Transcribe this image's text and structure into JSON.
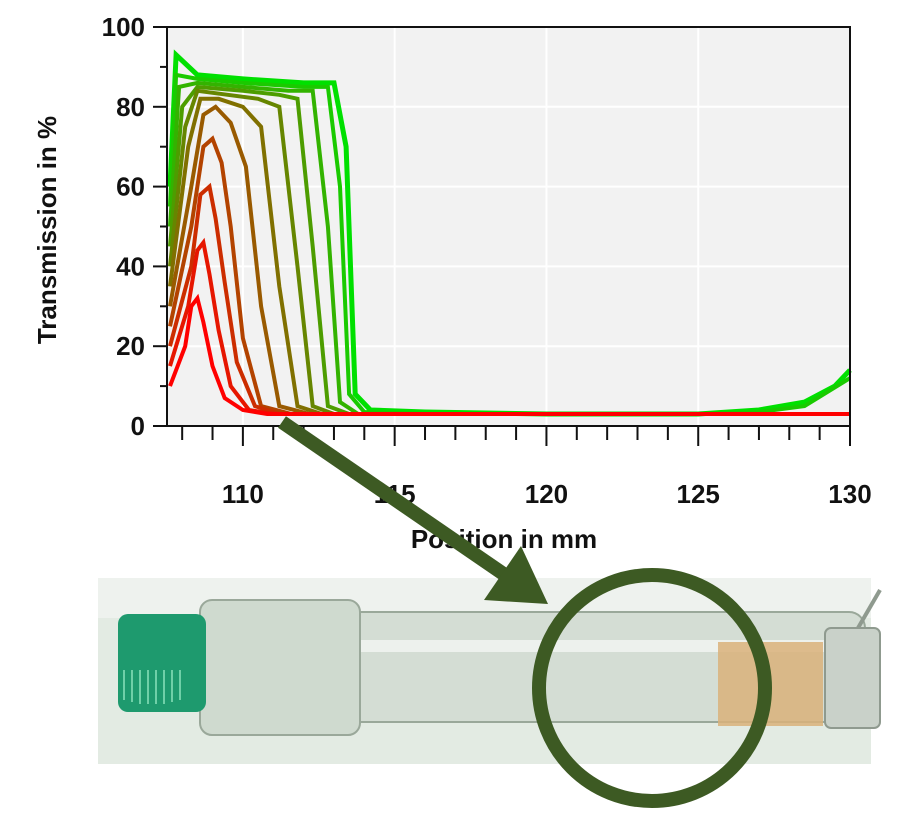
{
  "chart_data": {
    "type": "line",
    "xlabel": "Position in mm",
    "ylabel": "Transmission in %",
    "xlim": [
      107.5,
      130
    ],
    "ylim": [
      0,
      100
    ],
    "x_ticks": [
      110,
      115,
      120,
      125,
      130
    ],
    "y_ticks": [
      0,
      20,
      40,
      60,
      80,
      100
    ],
    "grid": true,
    "series_color_start": "#00e000",
    "series_color_end": "#ff0000",
    "series": [
      {
        "x": [
          107.6,
          107.8,
          108.5,
          110,
          112,
          113.0,
          113.4,
          113.7,
          114.2,
          116,
          120,
          125,
          127,
          128.5,
          129.5,
          130
        ],
        "values": [
          60,
          93,
          88,
          87,
          86,
          86,
          70,
          8,
          4,
          3.5,
          3,
          3,
          4,
          6,
          10,
          14
        ]
      },
      {
        "x": [
          107.6,
          107.8,
          108.5,
          110,
          112,
          112.8,
          113.2,
          113.5,
          114,
          116,
          120,
          125,
          127,
          128.5,
          130
        ],
        "values": [
          55,
          88,
          87,
          86,
          85,
          85,
          60,
          8,
          3.5,
          3,
          3,
          3,
          3.5,
          5,
          12
        ]
      },
      {
        "x": [
          107.6,
          107.9,
          108.5,
          110,
          111.5,
          112.3,
          112.8,
          113.2,
          113.8,
          116,
          120,
          125,
          130
        ],
        "values": [
          50,
          85,
          86,
          85,
          84,
          84,
          50,
          6,
          3,
          3,
          3,
          3,
          3
        ]
      },
      {
        "x": [
          107.6,
          108.0,
          108.5,
          110,
          111.2,
          111.8,
          112.3,
          112.8,
          113.5,
          116,
          120,
          125,
          130
        ],
        "values": [
          45,
          80,
          85,
          84,
          83,
          82,
          45,
          5,
          3,
          3,
          3,
          3,
          3
        ]
      },
      {
        "x": [
          107.6,
          108.1,
          108.5,
          109.5,
          110.5,
          111.2,
          111.8,
          112.3,
          113,
          116,
          120,
          125,
          130
        ],
        "values": [
          40,
          75,
          84,
          83,
          82,
          80,
          40,
          5,
          3,
          3,
          3,
          3,
          3
        ]
      },
      {
        "x": [
          107.6,
          108.2,
          108.6,
          109.2,
          110,
          110.6,
          111.2,
          111.8,
          112.6,
          116,
          120,
          125,
          130
        ],
        "values": [
          35,
          70,
          82,
          82,
          80,
          75,
          35,
          5,
          3,
          3,
          3,
          3,
          3
        ]
      },
      {
        "x": [
          107.6,
          108.3,
          108.7,
          109.1,
          109.6,
          110.1,
          110.6,
          111.2,
          112.2,
          116,
          120,
          125,
          130
        ],
        "values": [
          30,
          60,
          78,
          80,
          76,
          65,
          30,
          5,
          3,
          3,
          3,
          3,
          3
        ]
      },
      {
        "x": [
          107.6,
          108.3,
          108.7,
          109.0,
          109.3,
          109.6,
          110.0,
          110.6,
          111.6,
          116,
          120,
          125,
          130
        ],
        "values": [
          25,
          50,
          70,
          72,
          66,
          50,
          22,
          5,
          3,
          3,
          3,
          3,
          3
        ]
      },
      {
        "x": [
          107.6,
          108.3,
          108.6,
          108.9,
          109.1,
          109.4,
          109.8,
          110.4,
          111.2,
          116,
          120,
          125,
          130
        ],
        "values": [
          20,
          40,
          58,
          60,
          52,
          36,
          16,
          5,
          3,
          3,
          3,
          3,
          3
        ]
      },
      {
        "x": [
          107.6,
          108.2,
          108.5,
          108.7,
          108.9,
          109.2,
          109.6,
          110.2,
          111,
          116,
          120,
          125,
          130
        ],
        "values": [
          15,
          30,
          44,
          46,
          38,
          24,
          10,
          4,
          3,
          3,
          3,
          3,
          3
        ]
      },
      {
        "x": [
          107.6,
          108.1,
          108.3,
          108.5,
          108.7,
          109.0,
          109.4,
          110.0,
          110.8,
          116,
          120,
          125,
          130
        ],
        "values": [
          10,
          20,
          30,
          32,
          26,
          15,
          7,
          4,
          3,
          3,
          3,
          3,
          3
        ]
      }
    ]
  },
  "annotation": {
    "arrow_color": "#3d5a23",
    "circle_color": "#3d5a23"
  },
  "photo": {
    "cap_color": "#1e9a6e",
    "sample_color": "#d9b27a",
    "background_color": "#e6ece6"
  }
}
